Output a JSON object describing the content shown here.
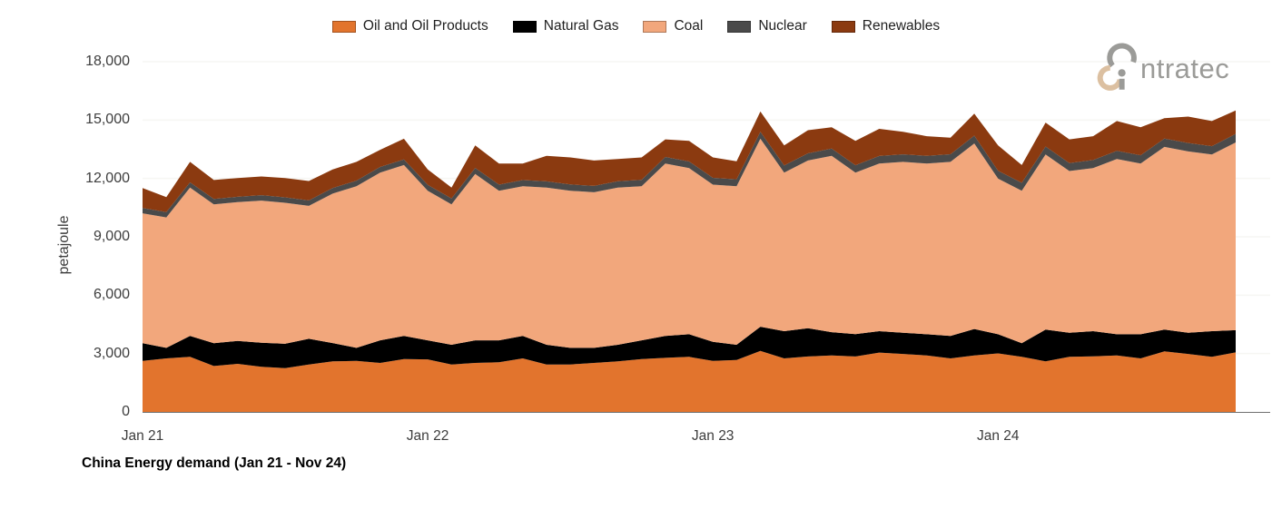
{
  "title": "China Energy demand (Jan 21 - Nov 24)",
  "legend_note": "legend is generated from chart_data.series",
  "y_axis": {
    "label": "petajoule",
    "tick_values": [
      0,
      3000,
      6000,
      9000,
      12000,
      15000,
      18000
    ],
    "tick_labels": [
      "0",
      "3,000",
      "6,000",
      "9,000",
      "12,000",
      "15,000",
      "18,000"
    ]
  },
  "x_axis": {
    "tick_labels": [
      "Jan 21",
      "Jan 22",
      "Jan 23",
      "Jan 24"
    ],
    "tick_month_indices": [
      0,
      12,
      24,
      36
    ]
  },
  "logo": {
    "text_after_mark": "ntratec",
    "gray": "#9b9b98",
    "tan": "#dcc0a1"
  },
  "colors": {
    "grid": "#f6f6f3",
    "axis_line": "#6f6f6f",
    "background": "#ffffff"
  },
  "chart_data": {
    "type": "area",
    "stacked": true,
    "title": "China Energy demand (Jan 21 - Nov 24)",
    "xlabel": "",
    "ylabel": "petajoule",
    "ylim": [
      0,
      18000
    ],
    "grid": "horizontal-faint",
    "legend_position": "top",
    "x": [
      "Jan-21",
      "Feb-21",
      "Mar-21",
      "Apr-21",
      "May-21",
      "Jun-21",
      "Jul-21",
      "Aug-21",
      "Sep-21",
      "Oct-21",
      "Nov-21",
      "Dec-21",
      "Jan-22",
      "Feb-22",
      "Mar-22",
      "Apr-22",
      "May-22",
      "Jun-22",
      "Jul-22",
      "Aug-22",
      "Sep-22",
      "Oct-22",
      "Nov-22",
      "Dec-22",
      "Jan-23",
      "Feb-23",
      "Mar-23",
      "Apr-23",
      "May-23",
      "Jun-23",
      "Jul-23",
      "Aug-23",
      "Sep-23",
      "Oct-23",
      "Nov-23",
      "Dec-23",
      "Jan-24",
      "Feb-24",
      "Mar-24",
      "Apr-24",
      "May-24",
      "Jun-24",
      "Jul-24",
      "Aug-24",
      "Sep-24",
      "Oct-24",
      "Nov-24"
    ],
    "series": [
      {
        "name": "Oil and Oil Products",
        "color": "#E2742D",
        "values": [
          2620,
          2750,
          2830,
          2360,
          2470,
          2320,
          2250,
          2440,
          2600,
          2620,
          2520,
          2720,
          2700,
          2440,
          2520,
          2550,
          2750,
          2440,
          2440,
          2520,
          2600,
          2720,
          2780,
          2830,
          2620,
          2670,
          3140,
          2750,
          2850,
          2900,
          2850,
          3050,
          2980,
          2900,
          2750,
          2900,
          3010,
          2830,
          2600,
          2830,
          2860,
          2900,
          2750,
          3110,
          2980,
          2830,
          3060
        ]
      },
      {
        "name": "Natural Gas",
        "color": "#000000",
        "values": [
          910,
          540,
          1080,
          1170,
          1180,
          1240,
          1250,
          1320,
          940,
          670,
          1160,
          1190,
          980,
          1010,
          1160,
          1130,
          1160,
          1010,
          850,
          770,
          850,
          960,
          1130,
          1160,
          980,
          780,
          1240,
          1400,
          1450,
          1200,
          1150,
          1100,
          1090,
          1090,
          1160,
          1360,
          980,
          700,
          1630,
          1240,
          1290,
          1090,
          1240,
          1120,
          1090,
          1320,
          1140
        ]
      },
      {
        "name": "Coal",
        "color": "#F2A77C",
        "values": [
          6680,
          6710,
          7620,
          7140,
          7130,
          7300,
          7250,
          6830,
          7680,
          8310,
          8620,
          8780,
          7690,
          7220,
          8550,
          7690,
          7690,
          8080,
          8080,
          8000,
          8080,
          7920,
          8860,
          8540,
          8080,
          8150,
          9660,
          8150,
          8620,
          9060,
          8300,
          8620,
          8780,
          8780,
          8940,
          9540,
          8000,
          7840,
          9000,
          8310,
          8380,
          9010,
          8780,
          9390,
          9320,
          9080,
          9650
        ]
      },
      {
        "name": "Nuclear",
        "color": "#4A4A4A",
        "values": [
          270,
          270,
          270,
          275,
          275,
          280,
          280,
          280,
          285,
          285,
          290,
          290,
          300,
          300,
          310,
          310,
          315,
          320,
          320,
          325,
          330,
          330,
          335,
          340,
          350,
          355,
          360,
          365,
          370,
          375,
          380,
          385,
          390,
          390,
          395,
          400,
          400,
          405,
          410,
          410,
          415,
          420,
          420,
          425,
          430,
          430,
          440
        ]
      },
      {
        "name": "Renewables",
        "color": "#8B3A10",
        "values": [
          1030,
          770,
          1050,
          975,
          965,
          960,
          990,
          1000,
          955,
          965,
          880,
          1060,
          790,
          560,
          1160,
          1090,
          855,
          1310,
          1390,
          1305,
          1140,
          1150,
          905,
          1060,
          1050,
          925,
          1040,
          1035,
          1190,
          1095,
          1250,
          1395,
          1160,
          1010,
          845,
          1130,
          1310,
          915,
          1230,
          1220,
          1225,
          1530,
          1440,
          1055,
          1360,
          1290,
          1200
        ]
      }
    ]
  }
}
